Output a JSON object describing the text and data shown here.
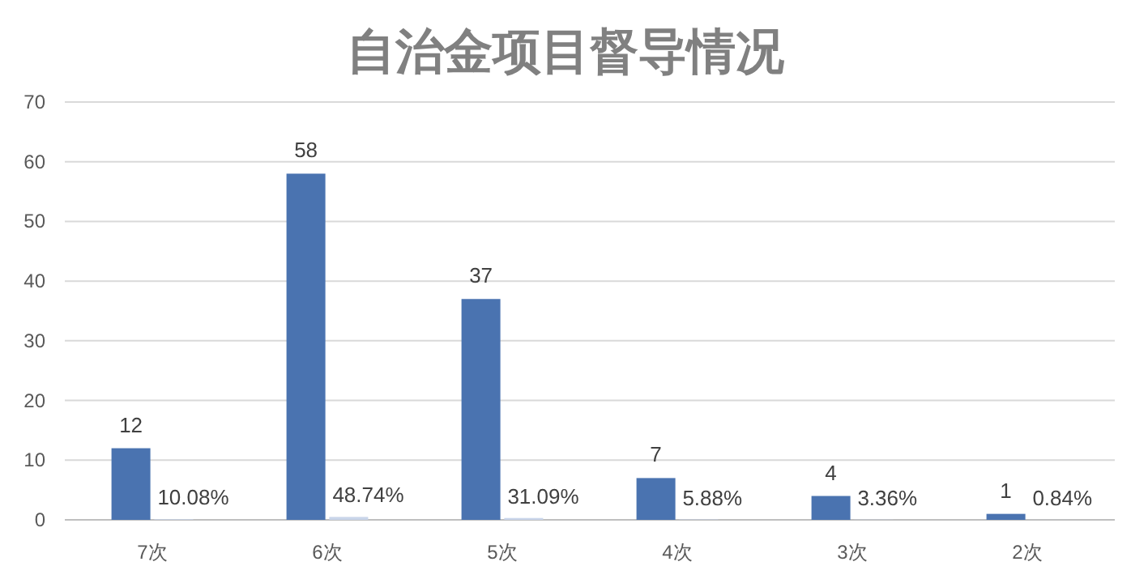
{
  "chart_data": {
    "type": "bar",
    "title": "自治金项目督导情况",
    "categories": [
      "7次",
      "6次",
      "5次",
      "4次",
      "3次",
      "2次"
    ],
    "series": [
      {
        "color": "#4a73b0",
        "values": [
          12,
          58,
          37,
          7,
          4,
          1
        ],
        "value_labels": [
          "12",
          "58",
          "37",
          "7",
          "4",
          "1"
        ]
      },
      {
        "color": "#c9d5ea",
        "values": [
          0.1008,
          0.4874,
          0.3109,
          0.0588,
          0.0336,
          0.0084
        ],
        "value_labels": [
          "10.08%",
          "48.74%",
          "31.09%",
          "5.88%",
          "3.36%",
          "0.84%"
        ]
      }
    ],
    "ylim": [
      0,
      70
    ],
    "yticks": [
      0,
      10,
      20,
      30,
      40,
      50,
      60,
      70
    ],
    "grid": "y"
  }
}
